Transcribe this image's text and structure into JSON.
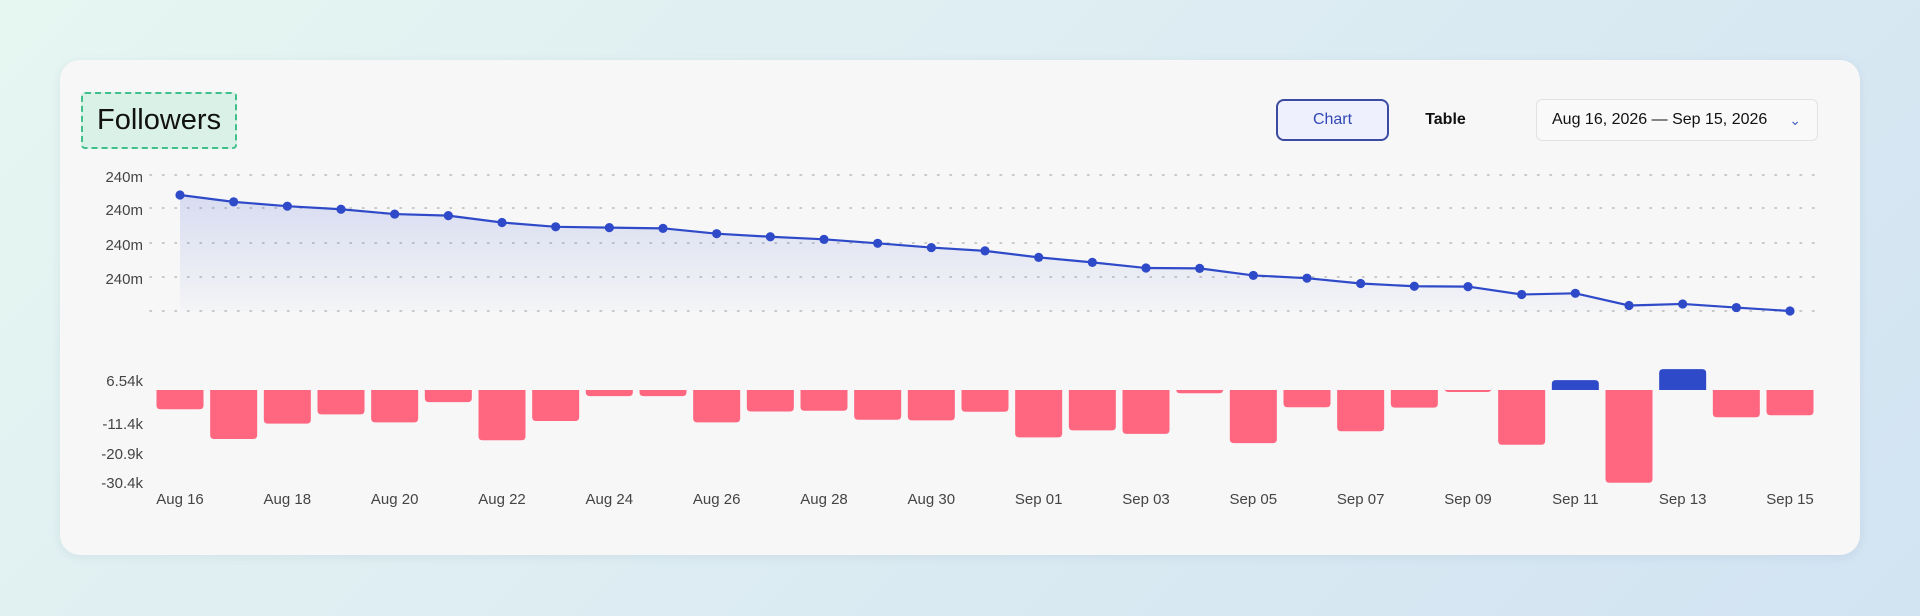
{
  "header": {
    "title": "Followers",
    "view_tabs": [
      {
        "label": "Chart",
        "active": true
      },
      {
        "label": "Table",
        "active": false
      }
    ],
    "date_range": "Aug 16, 2026 — Sep 15, 2026"
  },
  "colors": {
    "line": "#2f4ac9",
    "bar_positive": "#2f4ac9",
    "bar_negative": "#ff6680"
  },
  "chart_data": [
    {
      "type": "line",
      "title": "",
      "x": [
        "Aug 16",
        "Aug 17",
        "Aug 18",
        "Aug 19",
        "Aug 20",
        "Aug 21",
        "Aug 22",
        "Aug 23",
        "Aug 24",
        "Aug 25",
        "Aug 26",
        "Aug 27",
        "Aug 28",
        "Aug 29",
        "Aug 30",
        "Aug 31",
        "Sep 01",
        "Sep 02",
        "Sep 03",
        "Sep 04",
        "Sep 05",
        "Sep 06",
        "Sep 07",
        "Sep 08",
        "Sep 09",
        "Sep 10",
        "Sep 11",
        "Sep 12",
        "Sep 13",
        "Sep 14",
        "Sep 15"
      ],
      "y_ticks": [
        "240m",
        "240m",
        "240m",
        "240m"
      ],
      "series": [
        {
          "values": [
            240.3,
            240.296,
            240.2935,
            240.2917,
            240.2889,
            240.288,
            240.284,
            240.2815,
            240.281,
            240.2806,
            240.2775,
            240.2757,
            240.2742,
            240.2719,
            240.2694,
            240.2675,
            240.2637,
            240.2608,
            240.2575,
            240.2573,
            240.2532,
            240.2516,
            240.2485,
            240.2469,
            240.2467,
            240.2421,
            240.2428,
            240.2357,
            240.2366,
            240.2345,
            240.2325
          ]
        }
      ],
      "grid": true,
      "fill": "gradient"
    },
    {
      "type": "bar",
      "x": [
        "Aug 16",
        "Aug 17",
        "Aug 18",
        "Aug 19",
        "Aug 20",
        "Aug 21",
        "Aug 22",
        "Aug 23",
        "Aug 24",
        "Aug 25",
        "Aug 26",
        "Aug 27",
        "Aug 28",
        "Aug 29",
        "Aug 30",
        "Aug 31",
        "Sep 01",
        "Sep 02",
        "Sep 03",
        "Sep 04",
        "Sep 05",
        "Sep 06",
        "Sep 07",
        "Sep 08",
        "Sep 09",
        "Sep 10",
        "Sep 11",
        "Sep 12",
        "Sep 13",
        "Sep 14",
        "Sep 15"
      ],
      "y_ticks": [
        "6.54k",
        "-11.4k",
        "-20.9k",
        "-30.4k"
      ],
      "values": [
        -6.0,
        -15.3,
        -10.5,
        -7.6,
        -10.1,
        -3.8,
        -15.7,
        -9.7,
        -1.9,
        -1.9,
        -10.1,
        -6.7,
        -6.5,
        -9.3,
        -9.5,
        -6.8,
        -14.8,
        -12.6,
        -13.7,
        -1.0,
        -16.6,
        -5.4,
        -12.9,
        -5.5,
        -0.5,
        -17.1,
        3.1,
        -29.0,
        6.54,
        -8.5,
        -7.9
      ],
      "ylim": [
        -30.4,
        6.54
      ]
    }
  ],
  "x_tick_labels": [
    "Aug 16",
    "Aug 18",
    "Aug 20",
    "Aug 22",
    "Aug 24",
    "Aug 26",
    "Aug 28",
    "Aug 30",
    "Sep 01",
    "Sep 03",
    "Sep 05",
    "Sep 07",
    "Sep 09",
    "Sep 11",
    "Sep 13",
    "Sep 15"
  ]
}
